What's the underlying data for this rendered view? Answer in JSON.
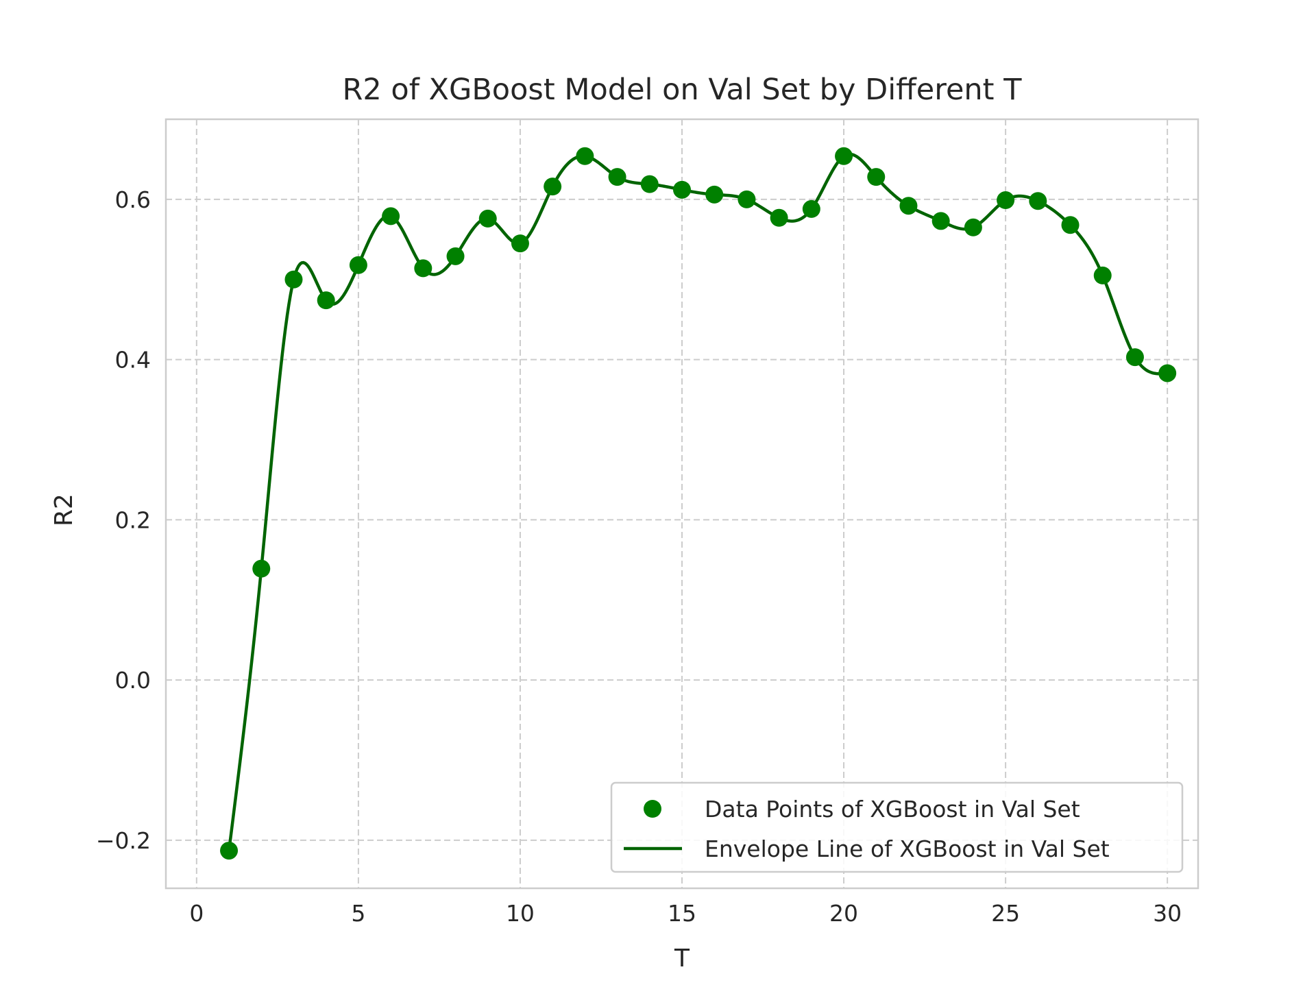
{
  "chart_data": {
    "type": "line",
    "title": "R2 of XGBoost Model on Val Set by Different T",
    "xlabel": "T",
    "ylabel": "R2",
    "xlim": [
      -0.95,
      30.95
    ],
    "ylim": [
      -0.26,
      0.7
    ],
    "xticks": [
      0,
      5,
      10,
      15,
      20,
      25,
      30
    ],
    "xtick_labels": [
      "0",
      "5",
      "10",
      "15",
      "20",
      "25",
      "30"
    ],
    "yticks": [
      -0.2,
      0.0,
      0.2,
      0.4,
      0.6
    ],
    "ytick_labels": [
      "−0.2",
      "0.0",
      "0.2",
      "0.4",
      "0.6"
    ],
    "grid": true,
    "grid_style": "dashed",
    "legend_position": "lower-right",
    "series": [
      {
        "name": "Data Points of XGBoost in Val Set",
        "kind": "scatter",
        "color": "#008000",
        "x": [
          1,
          2,
          3,
          4,
          5,
          6,
          7,
          8,
          9,
          10,
          11,
          12,
          13,
          14,
          15,
          16,
          17,
          18,
          19,
          20,
          21,
          22,
          23,
          24,
          25,
          26,
          27,
          28,
          29,
          30
        ],
        "y": [
          -0.213,
          0.139,
          0.5,
          0.474,
          0.518,
          0.579,
          0.514,
          0.529,
          0.576,
          0.545,
          0.616,
          0.654,
          0.628,
          0.619,
          0.612,
          0.606,
          0.6,
          0.577,
          0.588,
          0.654,
          0.628,
          0.592,
          0.573,
          0.565,
          0.599,
          0.598,
          0.568,
          0.505,
          0.403,
          0.383
        ]
      },
      {
        "name": "Envelope Line of XGBoost in Val Set",
        "kind": "line",
        "color": "#006400",
        "smooth": true
      }
    ]
  }
}
